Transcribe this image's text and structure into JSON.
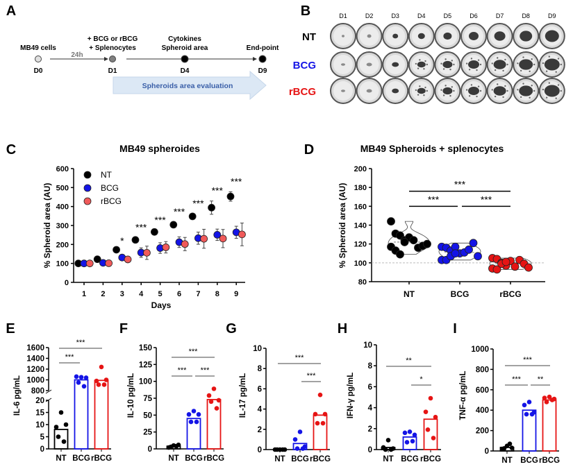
{
  "colors": {
    "NT": "#000000",
    "BCG": "#1414e6",
    "rBCG": "#e61414",
    "rBCG_light": "#f05a5a",
    "arrow_fill": "#dce8f5",
    "arrow_text": "#3a5fa8"
  },
  "panel_A": {
    "letter": "A",
    "events": [
      {
        "lines": [
          "MB49 cells"
        ],
        "day": "D0"
      },
      {
        "lines": [
          "+ BCG or rBCG",
          "+ Splenocytes"
        ],
        "day": "D1"
      },
      {
        "lines": [
          "Cytokines",
          "Spheroid area"
        ],
        "day": "D4"
      },
      {
        "lines": [
          "End-point"
        ],
        "day": "D9"
      }
    ],
    "interval": "24h",
    "arrow_label": "Spheroids area evaluation"
  },
  "panel_B": {
    "letter": "B",
    "columns": [
      "D1",
      "D2",
      "D3",
      "D4",
      "D5",
      "D6",
      "D7",
      "D8",
      "D9"
    ],
    "rows": [
      "NT",
      "BCG",
      "rBCG"
    ]
  },
  "chart_data": [
    {
      "panel": "C",
      "type": "scatter",
      "title": "MB49 spheroides",
      "xlabel": "Days",
      "ylabel": "% Spheroid area (AU)",
      "x": [
        1,
        2,
        3,
        4,
        5,
        6,
        7,
        8,
        9
      ],
      "xticks": [
        "1",
        "2",
        "3",
        "4",
        "5",
        "6",
        "7",
        "8",
        "9"
      ],
      "ylim": [
        0,
        600
      ],
      "yticks": [
        "0",
        "100",
        "200",
        "300",
        "400",
        "500",
        "600"
      ],
      "legend": "top-left",
      "series": [
        {
          "name": "NT",
          "mean": [
            100,
            122,
            172,
            224,
            266,
            304,
            348,
            394,
            453
          ],
          "error": [
            0,
            5,
            8,
            12,
            8,
            15,
            15,
            35,
            25
          ]
        },
        {
          "name": "BCG",
          "mean": [
            100,
            103,
            131,
            157,
            181,
            212,
            233,
            251,
            264
          ],
          "error": [
            0,
            5,
            8,
            25,
            28,
            28,
            32,
            30,
            32
          ]
        },
        {
          "name": "rBCG",
          "mean": [
            100,
            101,
            121,
            156,
            185,
            202,
            230,
            231,
            253
          ],
          "error": [
            0,
            4,
            8,
            35,
            30,
            35,
            50,
            48,
            60
          ]
        }
      ],
      "significance": [
        "",
        "",
        "*",
        "***",
        "***",
        "***",
        "***",
        "***",
        "***"
      ]
    },
    {
      "panel": "D",
      "type": "violin",
      "title": "MB49 Spheroids + splenocytes",
      "ylabel": "% Spheroid area (AU)",
      "categories": [
        "NT",
        "BCG",
        "rBCG"
      ],
      "ylim": [
        80,
        200
      ],
      "yticks": [
        "80",
        "100",
        "120",
        "140",
        "160",
        "180",
        "200"
      ],
      "reference_line": 100,
      "series": [
        {
          "name": "NT",
          "values": [
            144,
            131,
            129,
            124,
            127,
            124,
            116,
            118,
            120,
            117,
            113,
            109,
            122
          ]
        },
        {
          "name": "BCG",
          "values": [
            117,
            116,
            113,
            117,
            110,
            111,
            114,
            121,
            107,
            103,
            103,
            107,
            110
          ]
        },
        {
          "name": "rBCG",
          "values": [
            105,
            104,
            100,
            97,
            102,
            96,
            103,
            99,
            95,
            94,
            93,
            99,
            101
          ]
        }
      ],
      "comparisons": [
        {
          "from": 0,
          "to": 2,
          "label": "***"
        },
        {
          "from": 0,
          "to": 1,
          "label": "***"
        },
        {
          "from": 1,
          "to": 2,
          "label": "***"
        }
      ]
    },
    {
      "panel": "E",
      "type": "bar",
      "ylabel": "IL-6 pg/mL",
      "categories": [
        "NT",
        "BCG",
        "rBCG"
      ],
      "means": [
        8,
        1000,
        990
      ],
      "points": [
        [
          15,
          9,
          10,
          5,
          3
        ],
        [
          1050,
          1060,
          1040,
          950,
          880
        ],
        [
          1240,
          980,
          1000,
          910,
          910
        ]
      ],
      "ylim": [
        0,
        1600
      ],
      "axis_break": [
        20,
        800
      ],
      "yticks": [
        "0",
        "5",
        "10",
        "15",
        "20",
        "800",
        "1000",
        "1200",
        "1400",
        "1600"
      ],
      "comparisons": [
        {
          "from": 0,
          "to": 2,
          "label": "***"
        },
        {
          "from": 0,
          "to": 1,
          "label": "***"
        }
      ]
    },
    {
      "panel": "F",
      "type": "bar",
      "ylabel": "IL-10 pg/mL",
      "categories": [
        "NT",
        "BCG",
        "rBCG"
      ],
      "means": [
        4,
        45,
        73
      ],
      "points": [
        [
          5,
          2,
          6,
          3,
          4
        ],
        [
          56,
          51,
          51,
          40,
          40
        ],
        [
          89,
          79,
          72,
          70,
          60
        ]
      ],
      "ylim": [
        0,
        150
      ],
      "yticks": [
        "0",
        "25",
        "50",
        "75",
        "100",
        "125",
        "150"
      ],
      "comparisons": [
        {
          "from": 0,
          "to": 2,
          "label": "***"
        },
        {
          "from": 0,
          "to": 1,
          "label": "***"
        },
        {
          "from": 1,
          "to": 2,
          "label": "***"
        }
      ]
    },
    {
      "panel": "G",
      "type": "bar",
      "ylabel": "IL-17 pg/mL",
      "categories": [
        "NT",
        "BCG",
        "rBCG"
      ],
      "means": [
        0,
        0.6,
        3.4
      ],
      "points": [
        [
          0,
          0,
          0,
          0,
          0
        ],
        [
          1.75,
          1.0,
          0.3,
          0.1,
          0.1
        ],
        [
          5.4,
          3.5,
          3.5,
          2.6,
          2.6
        ]
      ],
      "ylim": [
        0,
        10
      ],
      "yticks": [
        "0",
        "2",
        "4",
        "6",
        "8",
        "10"
      ],
      "comparisons": [
        {
          "from": 0,
          "to": 2,
          "label": "***"
        },
        {
          "from": 1,
          "to": 2,
          "label": "***"
        }
      ]
    },
    {
      "panel": "H",
      "type": "bar",
      "ylabel": "IFN-γ pg/mL",
      "categories": [
        "NT",
        "BCG",
        "rBCG"
      ],
      "means": [
        0.2,
        1.2,
        2.9
      ],
      "points": [
        [
          0.9,
          0.2,
          0.1,
          0,
          0
        ],
        [
          1.7,
          1.6,
          1.4,
          0.7,
          0.8
        ],
        [
          4.9,
          3.6,
          3.1,
          1.9,
          1.1
        ]
      ],
      "ylim": [
        0,
        10
      ],
      "yticks": [
        "0",
        "2",
        "4",
        "6",
        "8",
        "10"
      ],
      "comparisons": [
        {
          "from": 0,
          "to": 2,
          "label": "**"
        },
        {
          "from": 1,
          "to": 2,
          "label": "*"
        }
      ]
    },
    {
      "panel": "I",
      "type": "bar",
      "ylabel": "TNF-α pg/mL",
      "categories": [
        "NT",
        "BCG",
        "rBCG"
      ],
      "means": [
        35,
        400,
        500
      ],
      "points": [
        [
          50,
          20,
          30,
          25,
          70
        ],
        [
          480,
          450,
          380,
          360,
          360
        ],
        [
          530,
          520,
          510,
          480,
          500
        ]
      ],
      "ylim": [
        0,
        1000
      ],
      "yticks": [
        "0",
        "200",
        "400",
        "600",
        "800",
        "1000"
      ],
      "comparisons": [
        {
          "from": 0,
          "to": 2,
          "label": "***"
        },
        {
          "from": 0,
          "to": 1,
          "label": "***"
        },
        {
          "from": 1,
          "to": 2,
          "label": "**"
        }
      ]
    }
  ]
}
